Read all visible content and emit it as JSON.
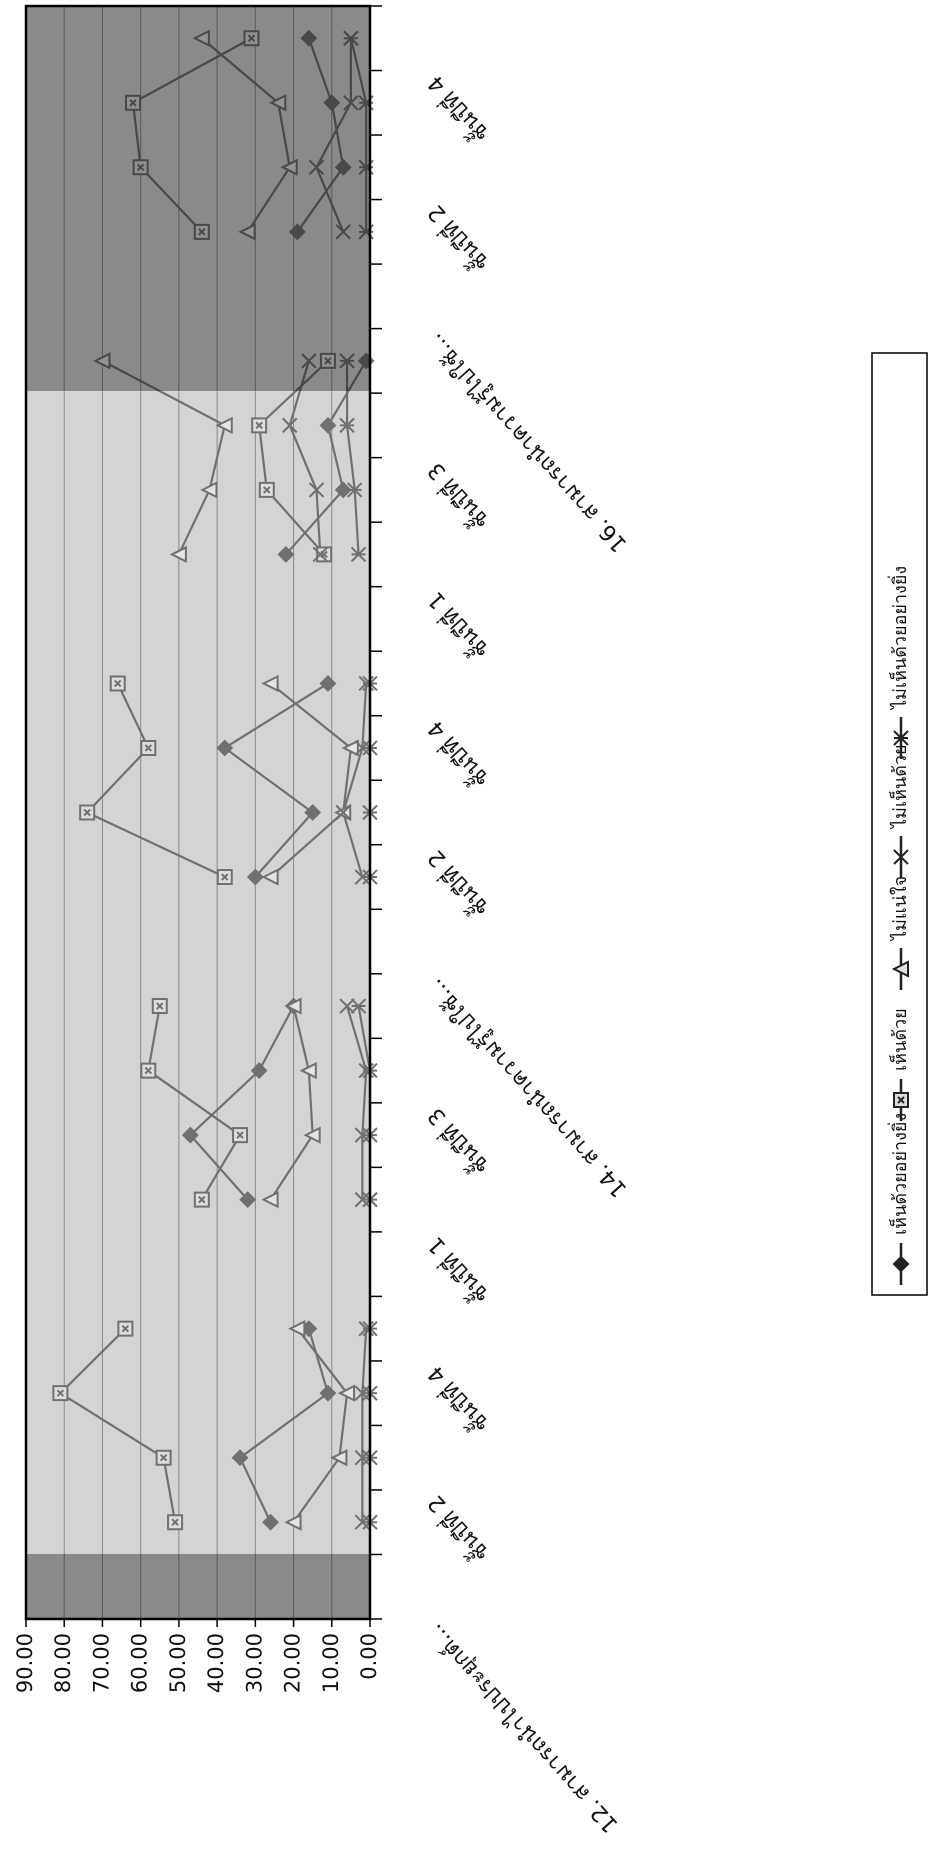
{
  "chart_data": {
    "type": "line",
    "categories": [
      "12. สามารถนำไปประยุกต์...",
      null,
      "ชั้นปีที่ 2",
      null,
      "ชั้นปีที่ 4",
      null,
      "ชั้นปีที่ 1",
      null,
      "ชั้นปีที่ 3",
      null,
      "14. สามารถนำความรู้ไปใช้...",
      null,
      "ชั้นปีที่ 2",
      null,
      "ชั้นปีที่ 4",
      null,
      "ชั้นปีที่ 1",
      null,
      "ชั้นปีที่ 3",
      null,
      "16. สามารถนำความรู้ไปใช้...",
      null,
      "ชั้นปีที่ 2",
      null,
      "ชั้นปีที่ 4"
    ],
    "series": [
      {
        "name": "เห็นด้วยอย่างยิ่ง",
        "color": "#707070",
        "marker": "diamond",
        "values": [
          null,
          26,
          34,
          11,
          16,
          null,
          32,
          47,
          29,
          20,
          null,
          30,
          15,
          38,
          11,
          null,
          22,
          7,
          11,
          1,
          null,
          19,
          7,
          10,
          16
        ]
      },
      {
        "name": "เห็นด้วย",
        "color": "#707070",
        "marker": "square",
        "values": [
          null,
          51,
          54,
          81,
          64,
          null,
          44,
          34,
          58,
          55,
          null,
          38,
          74,
          58,
          66,
          null,
          12,
          27,
          29,
          11,
          null,
          44,
          60,
          62,
          31
        ]
      },
      {
        "name": "ไม่แน่ใจ",
        "color": "#707070",
        "marker": "triangle",
        "values": [
          null,
          20,
          8,
          6,
          19,
          null,
          26,
          15,
          16,
          20,
          null,
          26,
          7,
          5,
          26,
          null,
          50,
          42,
          38,
          70,
          null,
          32,
          21,
          24,
          44
        ]
      },
      {
        "name": "ไม่เห็นด้วย",
        "color": "#707070",
        "marker": "cross",
        "values": [
          null,
          2,
          2,
          2,
          1,
          null,
          2,
          2,
          1,
          6,
          null,
          2,
          7,
          2,
          1,
          null,
          13,
          14,
          21,
          16,
          null,
          7,
          14,
          5,
          5
        ]
      },
      {
        "name": "ไม่เห็นด้วยอย่างยิ่ง",
        "color": "#707070",
        "marker": "asterisk",
        "values": [
          null,
          0,
          0,
          0,
          0,
          null,
          0,
          0,
          0,
          3,
          null,
          0,
          0,
          0,
          0,
          null,
          3,
          4,
          6,
          6,
          null,
          1,
          1,
          1,
          5
        ]
      }
    ],
    "ylim": [
      0,
      90
    ],
    "yticks": [
      {
        "value": 0,
        "label": "0.00"
      },
      {
        "value": 10,
        "label": "10.00"
      },
      {
        "value": 20,
        "label": "20.00"
      },
      {
        "value": 30,
        "label": "30.00"
      },
      {
        "value": 40,
        "label": "40.00"
      },
      {
        "value": 50,
        "label": "50.00"
      },
      {
        "value": 60,
        "label": "60.00"
      },
      {
        "value": 70,
        "label": "70.00"
      },
      {
        "value": 80,
        "label": "80.00"
      },
      {
        "value": 90,
        "label": "90.00"
      }
    ],
    "grid": true,
    "legend": "right"
  }
}
